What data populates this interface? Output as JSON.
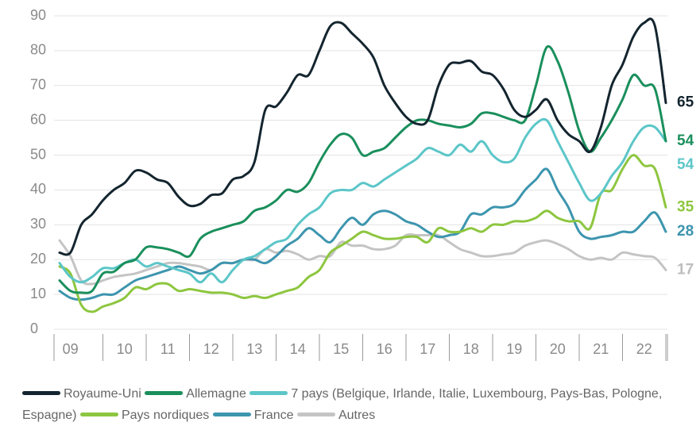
{
  "chart_data": {
    "type": "line",
    "categories": [
      null,
      "09",
      null,
      null,
      null,
      null,
      "10",
      null,
      null,
      null,
      "11",
      null,
      null,
      null,
      "12",
      null,
      null,
      null,
      "13",
      null,
      null,
      null,
      "14",
      null,
      null,
      null,
      "15",
      null,
      null,
      null,
      "16",
      null,
      null,
      null,
      "17",
      null,
      null,
      null,
      "18",
      null,
      null,
      null,
      "19",
      null,
      null,
      null,
      "20",
      null,
      null,
      null,
      "21",
      null,
      null,
      null,
      "22",
      null,
      null
    ],
    "ylim": [
      0,
      90
    ],
    "yticks": [
      0,
      10,
      20,
      30,
      40,
      50,
      60,
      70,
      80,
      90
    ],
    "grid": true,
    "series": [
      {
        "name": "Royaume-Uni",
        "color": "#14252f",
        "values": [
          22,
          22,
          30,
          33,
          37,
          40,
          42,
          45.5,
          45,
          43,
          42,
          38,
          35.5,
          36,
          38.5,
          39,
          43,
          44,
          48,
          63,
          64,
          68,
          73,
          73,
          80,
          87,
          88,
          85,
          82,
          78,
          70,
          65,
          61,
          59,
          60,
          70,
          76,
          76.5,
          77,
          74,
          73,
          69,
          63,
          61,
          63,
          66,
          60,
          56,
          54,
          51,
          58,
          70,
          76,
          84,
          88,
          87,
          65
        ]
      },
      {
        "name": "Allemagne",
        "color": "#1a8f5c",
        "values": [
          14,
          11,
          10.5,
          11,
          16,
          16.5,
          19,
          20,
          23.5,
          23.5,
          23,
          22,
          21,
          26,
          28,
          29,
          30,
          31,
          34,
          35,
          37,
          40,
          39.5,
          42,
          48,
          53,
          56,
          55,
          50,
          51,
          52,
          55,
          58,
          60,
          60,
          59,
          58.5,
          58,
          59,
          62,
          62,
          61,
          60,
          60,
          70,
          81,
          77,
          68,
          57,
          51,
          55,
          60,
          66,
          73,
          70,
          69,
          54
        ]
      },
      {
        "name": "7 pays (Belgique, Irlande, Italie, Luxembourg, Pays-Bas, Pologne, Espagne)",
        "color": "#5cc6c8",
        "values": [
          19,
          15,
          13.5,
          15,
          17.5,
          17.5,
          19,
          20,
          18,
          19,
          18,
          17,
          16,
          13.5,
          16,
          13.5,
          17,
          20,
          21,
          23,
          25,
          26,
          30,
          33,
          35,
          39,
          40,
          40,
          42,
          41,
          43,
          45,
          47,
          49,
          52,
          51,
          50,
          53,
          51,
          54,
          50,
          48,
          49,
          55,
          59,
          60,
          54,
          48,
          42,
          37,
          39,
          44,
          48,
          54,
          58,
          58,
          54
        ]
      },
      {
        "name": "Pays nordiques",
        "color": "#8dc63f",
        "values": [
          18,
          16,
          7,
          5,
          6.5,
          7.5,
          9,
          12,
          11.5,
          13,
          13,
          11,
          11.5,
          11,
          10.5,
          10.5,
          10,
          9,
          9.5,
          9,
          10,
          11,
          12,
          15,
          17,
          22,
          24,
          26,
          28,
          27,
          26,
          26,
          26.5,
          26.5,
          25,
          29,
          28,
          28,
          29,
          28,
          30,
          30,
          31,
          31,
          32,
          34,
          32,
          31,
          31,
          29,
          39,
          40,
          46,
          50,
          47,
          46,
          35
        ]
      },
      {
        "name": "France",
        "color": "#3d95ae",
        "values": [
          11,
          9,
          8.5,
          9,
          10,
          10,
          12,
          14,
          15,
          16,
          17,
          18,
          17,
          16,
          17,
          19,
          19,
          20,
          20,
          19,
          21,
          24,
          26,
          29,
          27,
          25,
          29,
          32,
          30,
          33,
          34,
          33,
          31,
          30,
          28,
          26.5,
          27,
          28,
          33,
          33,
          35,
          35,
          36,
          40,
          43,
          46,
          40,
          35,
          28,
          26,
          26.5,
          27,
          28,
          28,
          31,
          33.5,
          28
        ]
      },
      {
        "name": "Autres",
        "color": "#c4c4c4",
        "values": [
          25.5,
          21,
          14,
          13,
          14,
          15,
          15.5,
          16,
          17,
          18,
          19,
          19,
          18.5,
          18,
          17,
          19,
          19,
          20,
          20,
          23,
          22,
          22.5,
          21.5,
          20,
          21,
          21,
          25,
          24,
          24,
          23,
          23,
          24,
          27,
          27,
          27,
          27,
          25,
          23,
          22,
          21,
          21,
          21.5,
          22,
          24,
          25,
          25.5,
          24.5,
          23,
          21,
          20,
          20.5,
          20,
          22,
          21.5,
          21,
          20.5,
          17
        ]
      }
    ]
  }
}
